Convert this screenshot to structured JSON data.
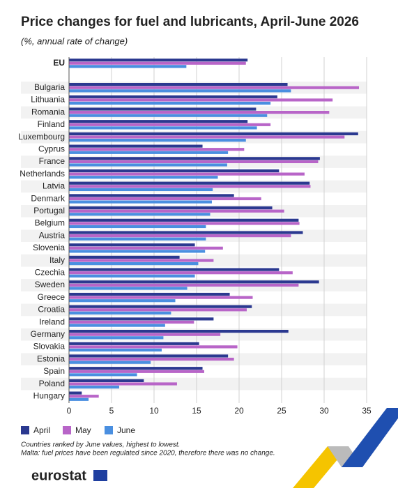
{
  "chart_data": {
    "type": "hbar",
    "title": "Price changes for fuel and lubricants, April-June 2026",
    "subtitle": "(%, annual rate of change)",
    "categories": [
      "EU",
      "Bulgaria",
      "Lithuania",
      "Romania",
      "Finland",
      "Luxembourg",
      "Cyprus",
      "France",
      "Netherlands",
      "Latvia",
      "Denmark",
      "Portugal",
      "Belgium",
      "Austria",
      "Slovenia",
      "Italy",
      "Czechia",
      "Sweden",
      "Greece",
      "Croatia",
      "Ireland",
      "Germany",
      "Slovakia",
      "Estonia",
      "Spain",
      "Poland",
      "Hungary"
    ],
    "series": [
      {
        "name": "April",
        "color": "#2b3990",
        "values": [
          21.0,
          25.7,
          24.5,
          22.0,
          21.0,
          34.0,
          15.7,
          29.5,
          24.7,
          28.3,
          19.4,
          23.9,
          27.0,
          27.5,
          14.8,
          13.0,
          24.7,
          29.4,
          18.9,
          21.5,
          17.0,
          25.8,
          15.3,
          18.7,
          15.7,
          8.8,
          1.5
        ]
      },
      {
        "name": "May",
        "color": "#b865c8",
        "values": [
          20.8,
          34.1,
          31.0,
          30.6,
          23.7,
          32.4,
          20.6,
          29.3,
          27.7,
          28.4,
          22.6,
          25.3,
          27.1,
          26.1,
          18.1,
          17.0,
          26.3,
          27.0,
          21.6,
          20.9,
          14.7,
          17.8,
          19.8,
          19.4,
          15.9,
          12.7,
          3.5
        ]
      },
      {
        "name": "June",
        "color": "#4a8fe0",
        "values": [
          13.8,
          26.1,
          23.7,
          23.3,
          22.1,
          20.8,
          18.7,
          18.6,
          17.5,
          16.9,
          16.8,
          16.6,
          16.1,
          16.1,
          16.0,
          15.2,
          14.8,
          13.9,
          12.5,
          12.0,
          11.3,
          11.1,
          10.9,
          9.6,
          8.0,
          5.9,
          2.3
        ]
      }
    ],
    "xlim": [
      0,
      35
    ],
    "xticks": [
      0,
      5,
      10,
      15,
      20,
      25,
      30,
      35
    ],
    "grid": true,
    "notes": [
      "Countries ranked by June values, highest to lowest.",
      "Malta: fuel prices have been regulated since 2020, therefore there was no change."
    ],
    "logo": "eurostat"
  }
}
